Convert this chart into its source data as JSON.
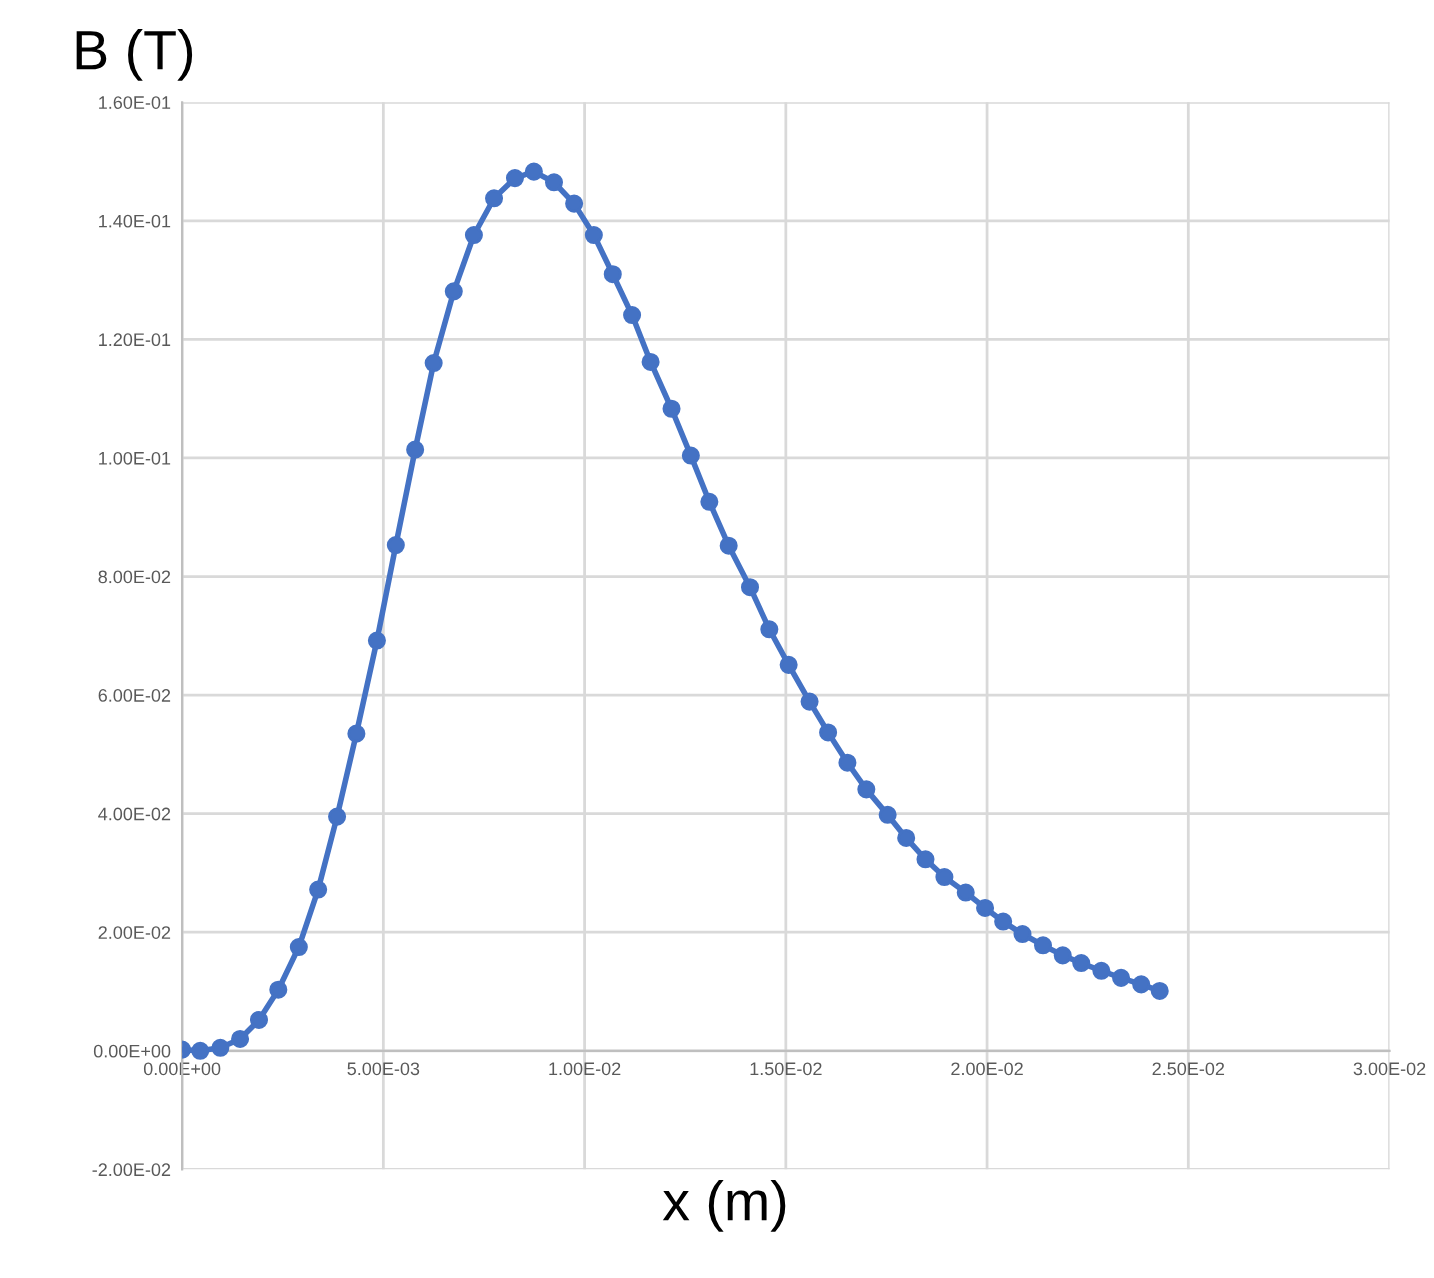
{
  "chart_data": {
    "type": "line",
    "xlabel": "x (m)",
    "ylabel": "B (T)",
    "x": [
      0,
      0.00045,
      0.00095,
      0.00144,
      0.00191,
      0.00239,
      0.0029,
      0.00338,
      0.00385,
      0.00433,
      0.00484,
      0.00531,
      0.00579,
      0.00625,
      0.00675,
      0.00725,
      0.00775,
      0.00827,
      0.00874,
      0.00924,
      0.00974,
      0.01023,
      0.0107,
      0.01118,
      0.01164,
      0.01216,
      0.01264,
      0.0131,
      0.01358,
      0.01411,
      0.01459,
      0.01507,
      0.01559,
      0.01605,
      0.01653,
      0.017,
      0.01753,
      0.01799,
      0.01847,
      0.01894,
      0.01947,
      0.01995,
      0.0204,
      0.02088,
      0.02139,
      0.02188,
      0.02234,
      0.02284,
      0.02333,
      0.02383,
      0.02429
    ],
    "series": [
      {
        "color": "#4472c4",
        "values": [
          0.0002,
          0.0,
          0.0005,
          0.002,
          0.0052,
          0.0103,
          0.0175,
          0.0272,
          0.0395,
          0.0535,
          0.0692,
          0.0853,
          0.1014,
          0.116,
          0.1281,
          0.1376,
          0.1438,
          0.1472,
          0.1483,
          0.1465,
          0.1429,
          0.1376,
          0.131,
          0.1241,
          0.1162,
          0.1083,
          0.1004,
          0.0926,
          0.0852,
          0.0782,
          0.0711,
          0.0651,
          0.0589,
          0.0537,
          0.0486,
          0.0441,
          0.0398,
          0.0359,
          0.0323,
          0.0293,
          0.0267,
          0.0241,
          0.0218,
          0.0197,
          0.0178,
          0.0161,
          0.0148,
          0.0135,
          0.0123,
          0.0112,
          0.0101
        ]
      }
    ],
    "xlim": [
      0,
      0.03
    ],
    "xticks": [
      {
        "value": 0,
        "label": "0.00E+00"
      },
      {
        "value": 0.005,
        "label": "5.00E-03"
      },
      {
        "value": 0.01,
        "label": "1.00E-02"
      },
      {
        "value": 0.015,
        "label": "1.50E-02"
      },
      {
        "value": 0.02,
        "label": "2.00E-02"
      },
      {
        "value": 0.025,
        "label": "2.50E-02"
      },
      {
        "value": 0.03,
        "label": "3.00E-02"
      }
    ],
    "ylim": [
      -0.02,
      0.16
    ],
    "yticks": [
      {
        "value": -0.02,
        "label": "-2.00E-02"
      },
      {
        "value": 0,
        "label": "0.00E+00"
      },
      {
        "value": 0.02,
        "label": "2.00E-02"
      },
      {
        "value": 0.04,
        "label": "4.00E-02"
      },
      {
        "value": 0.06,
        "label": "6.00E-02"
      },
      {
        "value": 0.08,
        "label": "8.00E-02"
      },
      {
        "value": 0.1,
        "label": "1.00E-01"
      },
      {
        "value": 0.12,
        "label": "1.20E-01"
      },
      {
        "value": 0.14,
        "label": "1.40E-01"
      },
      {
        "value": 0.16,
        "label": "1.60E-01"
      }
    ],
    "grid": true,
    "marker": "circle",
    "line_style": "solid"
  }
}
